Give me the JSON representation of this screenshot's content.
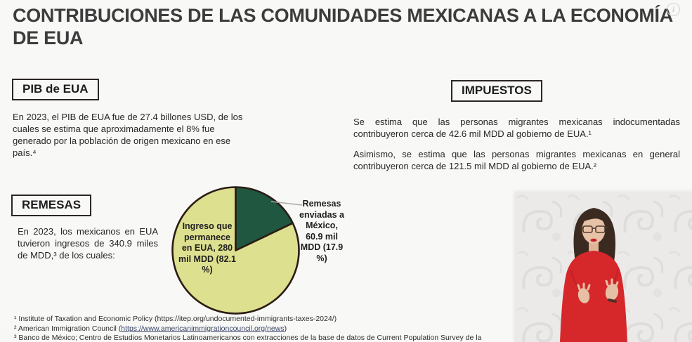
{
  "slide": {
    "title_lines": [
      "CONTRIBUCIONES DE LAS COMUNIDADES MEXICANAS A LA ECONOMÍA",
      "DE EUA"
    ]
  },
  "info_icon": {
    "glyph": "i"
  },
  "pib": {
    "heading": "PIB de EUA",
    "body": "En 2023, el PIB de EUA fue de 27.4 billones USD, de los cuales se estima que aproximadamente el 8% fue generado por la población de origen mexicano en ese país.⁴"
  },
  "impuestos": {
    "heading": "IMPUESTOS",
    "para1": "Se estima que las personas migrantes mexicanas indocumentadas contribuyeron cerca de 42.6 mil MDD al gobierno de EUA.¹",
    "para2": "Asimismo, se estima que las personas migrantes mexicanas en general contribuyeron cerca de 121.5 mil MDD al gobierno de EUA.²"
  },
  "remesas": {
    "heading": "REMESAS",
    "body": "En 2023, los mexicanos en EUA tuvieron ingresos de 340.9 miles de MDD,³ de los cuales:"
  },
  "chart_data": {
    "type": "pie",
    "title": "",
    "total": {
      "value": 340.9,
      "unit": "miles de MDD",
      "year": "2023"
    },
    "slices": [
      {
        "name": "Ingreso que permanece en EUA",
        "label": "Ingreso que permanece en EUA, 280 mil MDD (82.1 %)",
        "value": 280,
        "unit": "mil MDD",
        "percent": 82.1,
        "color": "#dde08f",
        "label_placement": "inside"
      },
      {
        "name": "Remesas enviadas a México",
        "label": "Remesas enviadas a México, 60.9 mil MDD (17.9 %)",
        "value": 60.9,
        "unit": "mil MDD",
        "percent": 17.9,
        "color": "#1f5741",
        "label_placement": "outside-right-leader-line"
      }
    ],
    "start_angle_deg": 0,
    "direction": "clockwise",
    "outline_color": "#2b1c14",
    "legend": "none"
  },
  "footnotes": {
    "f1": "¹ Institute of Taxation and Economic Policy (https://itep.org/undocumented-immigrants-taxes-2024/)",
    "f2_prefix": "² American Immigration Council (",
    "f2_link": "https://www.americanimmigrationcouncil.org/news",
    "f2_suffix": ")",
    "f3": "³ Banco de México; Centro de Estudios Monetarios Latinoamericanos con extracciones de la base de datos de Current Population Survey de la"
  },
  "interpreter": {
    "description": "Intérprete de lengua de señas mexicana",
    "sweater_color": "#d6272b",
    "background_color": "#ebeae9"
  }
}
